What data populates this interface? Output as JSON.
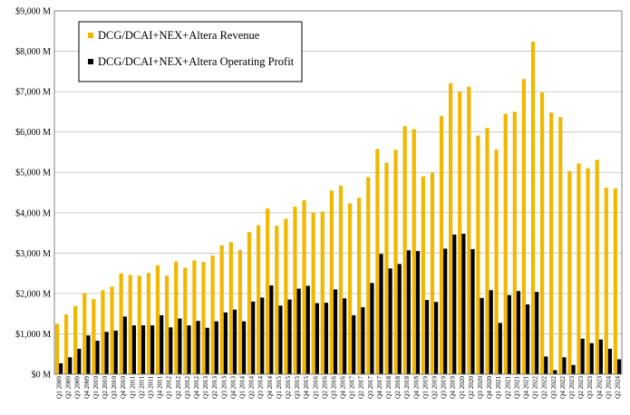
{
  "chart_data": {
    "type": "bar",
    "title": "",
    "xlabel": "",
    "ylabel": "",
    "ylim": [
      0,
      9000
    ],
    "y_unit": "$ millions",
    "y_ticks": [
      "$0 M",
      "$1,000 M",
      "$2,000 M",
      "$3,000 M",
      "$4,000 M",
      "$5,000 M",
      "$6,000 M",
      "$7,000 M",
      "$8,000 M",
      "$9,000 M"
    ],
    "y_tick_values": [
      0,
      1000,
      2000,
      3000,
      4000,
      5000,
      6000,
      7000,
      8000,
      9000
    ],
    "grid": "horizontal",
    "legend_position": "top-left",
    "categories": [
      "Q1 2009",
      "Q2 2009",
      "Q3 2009",
      "Q4 2009",
      "Q1 2010",
      "Q2 2010",
      "Q3 2010",
      "Q4 2010",
      "Q1 2011",
      "Q2 2011",
      "Q3 2011",
      "Q4 2011",
      "Q1 2012",
      "Q2 2012",
      "Q3 2012",
      "Q4 2012",
      "Q1 2013",
      "Q2 2013",
      "Q3 2013",
      "Q4 2013",
      "Q1 2014",
      "Q2 2014",
      "Q3 2014",
      "Q4 2014",
      "Q1 2015",
      "Q2 2015",
      "Q3 2015",
      "Q4 2015",
      "Q1 2016",
      "Q2 2016",
      "Q3 2016",
      "Q4 2016",
      "Q1 2017",
      "Q2 2017",
      "Q3 2017",
      "Q4 2017",
      "Q1 2018",
      "Q2 2018",
      "Q3 2018",
      "Q4 2018",
      "Q1 2019",
      "Q2 2019",
      "Q3 2019",
      "Q4 2019",
      "Q1 2020",
      "Q2 2020",
      "Q3 2020",
      "Q4 2020",
      "Q1 2021",
      "Q2 2021",
      "Q3 2021",
      "Q4 2021",
      "Q1 2022",
      "Q2 2022",
      "Q3 2022",
      "Q4 2022",
      "Q1 2023",
      "Q2 2023",
      "Q3 2023",
      "Q4 2023",
      "Q1 2024",
      "Q2 2024"
    ],
    "series": [
      {
        "name": "DCG/DCAI+NEX+Altera Revenue",
        "color": "#F0B800",
        "values": [
          1250,
          1480,
          1690,
          2010,
          1860,
          2080,
          2170,
          2500,
          2460,
          2440,
          2510,
          2700,
          2440,
          2790,
          2640,
          2820,
          2780,
          2940,
          3190,
          3270,
          3080,
          3520,
          3690,
          4100,
          3680,
          3850,
          4150,
          4310,
          4000,
          4030,
          4550,
          4670,
          4230,
          4370,
          4880,
          5580,
          5240,
          5560,
          6140,
          6070,
          4900,
          4990,
          6390,
          7210,
          7000,
          7120,
          5910,
          6100,
          5560,
          6450,
          6500,
          7310,
          8240,
          6980,
          6480,
          6370,
          5030,
          5220,
          5100,
          5310,
          4620,
          4600
        ]
      },
      {
        "name": "DCG/DCAI+NEX+Altera Operating Profit",
        "color": "#000000",
        "values": [
          270,
          420,
          630,
          960,
          830,
          1050,
          1080,
          1430,
          1210,
          1210,
          1210,
          1460,
          1160,
          1380,
          1210,
          1320,
          1150,
          1310,
          1530,
          1600,
          1310,
          1800,
          1900,
          2200,
          1700,
          1850,
          2120,
          2190,
          1760,
          1770,
          2100,
          1880,
          1460,
          1660,
          2260,
          2980,
          2620,
          2730,
          3070,
          3050,
          1840,
          1790,
          3110,
          3460,
          3480,
          3100,
          1890,
          2080,
          1270,
          1960,
          2060,
          1730,
          2040,
          440,
          100,
          420,
          230,
          880,
          770,
          860,
          630,
          370
        ]
      }
    ]
  }
}
